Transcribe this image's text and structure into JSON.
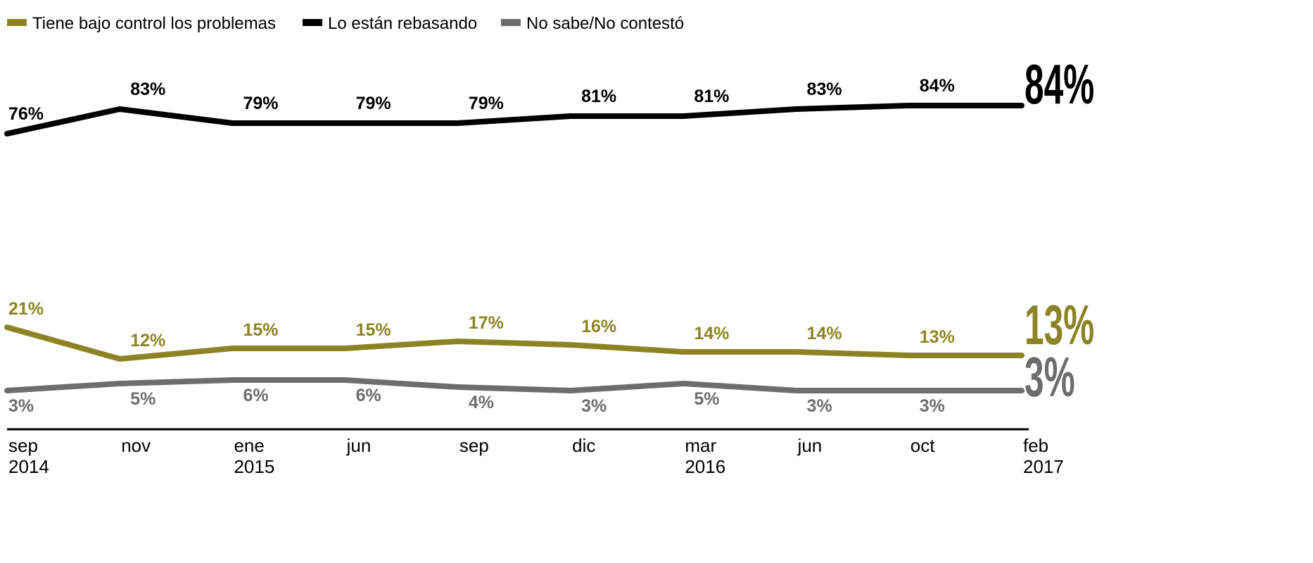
{
  "chart_data": {
    "type": "line",
    "categories": [
      "sep 2014",
      "nov",
      "ene 2015",
      "jun",
      "sep",
      "dic",
      "mar 2016",
      "jun",
      "oct",
      "feb 2017"
    ],
    "series": [
      {
        "name": "Tiene bajo control los problemas",
        "color": "#8c8424",
        "values": [
          21,
          12,
          15,
          15,
          17,
          16,
          14,
          14,
          13,
          13
        ],
        "value_labels": [
          "21%",
          "12%",
          "15%",
          "15%",
          "17%",
          "16%",
          "14%",
          "14%",
          "13%",
          "13%"
        ]
      },
      {
        "name": "Lo están rebasando",
        "color": "#000000",
        "values": [
          76,
          83,
          79,
          79,
          79,
          81,
          81,
          83,
          84,
          84
        ],
        "value_labels": [
          "76%",
          "83%",
          "79%",
          "79%",
          "79%",
          "81%",
          "81%",
          "83%",
          "84%",
          "84%"
        ]
      },
      {
        "name": "No sabe/No contestó",
        "color": "#6d6d6d",
        "values": [
          3,
          5,
          6,
          6,
          4,
          3,
          5,
          3,
          3,
          3
        ],
        "value_labels": [
          "3%",
          "5%",
          "6%",
          "6%",
          "4%",
          "3%",
          "5%",
          "3%",
          "3%",
          "3%"
        ]
      }
    ],
    "ylim": [
      -8,
      94
    ],
    "legend": "top-left"
  }
}
